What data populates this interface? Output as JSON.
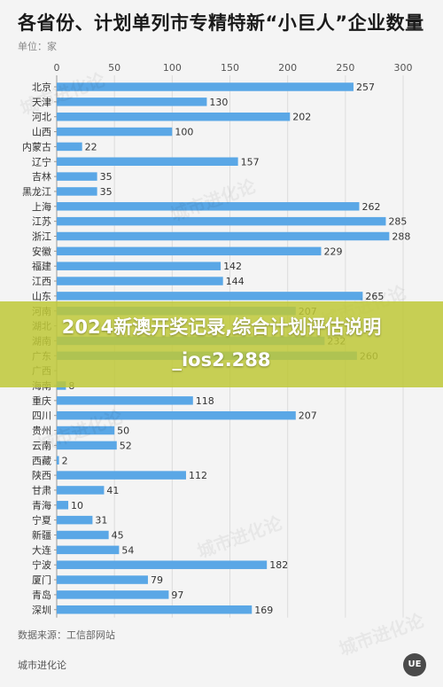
{
  "title": "各省份、计划单列市专精特新“小巨人”企业数量",
  "unit_label": "单位：家",
  "source": "数据来源：工信部网站",
  "brand": "城市进化论",
  "logo_text": "UE",
  "watermark_text": "城市进化论",
  "overlay_text": "2024新澳开奖记录,综合计划评估说明_ios2.288",
  "colors": {
    "bar": "#5aa7e6",
    "overlay": "#bec837",
    "grid": "#dddddd"
  },
  "chart_data": {
    "type": "bar",
    "orientation": "horizontal",
    "title": "各省份、计划单列市专精特新“小巨人”企业数量",
    "xlim": [
      0,
      300
    ],
    "xticks": [
      0,
      50,
      100,
      150,
      200,
      250,
      300
    ],
    "grid": true,
    "categories": [
      "北京",
      "天津",
      "河北",
      "山西",
      "内蒙古",
      "辽宁",
      "吉林",
      "黑龙江",
      "上海",
      "江苏",
      "浙江",
      "安徽",
      "福建",
      "江西",
      "山东",
      "河南",
      "湖北",
      "湖南",
      "广东",
      "广西",
      "海南",
      "重庆",
      "四川",
      "贵州",
      "云南",
      "西藏",
      "陕西",
      "甘肃",
      "青海",
      "宁夏",
      "新疆",
      "大连",
      "宁波",
      "厦门",
      "青岛",
      "深圳"
    ],
    "values": [
      257,
      130,
      202,
      100,
      22,
      157,
      35,
      35,
      262,
      285,
      288,
      229,
      142,
      144,
      265,
      207,
      null,
      232,
      260,
      null,
      8,
      118,
      207,
      50,
      52,
      2,
      112,
      41,
      10,
      31,
      45,
      54,
      182,
      79,
      97,
      169
    ]
  }
}
